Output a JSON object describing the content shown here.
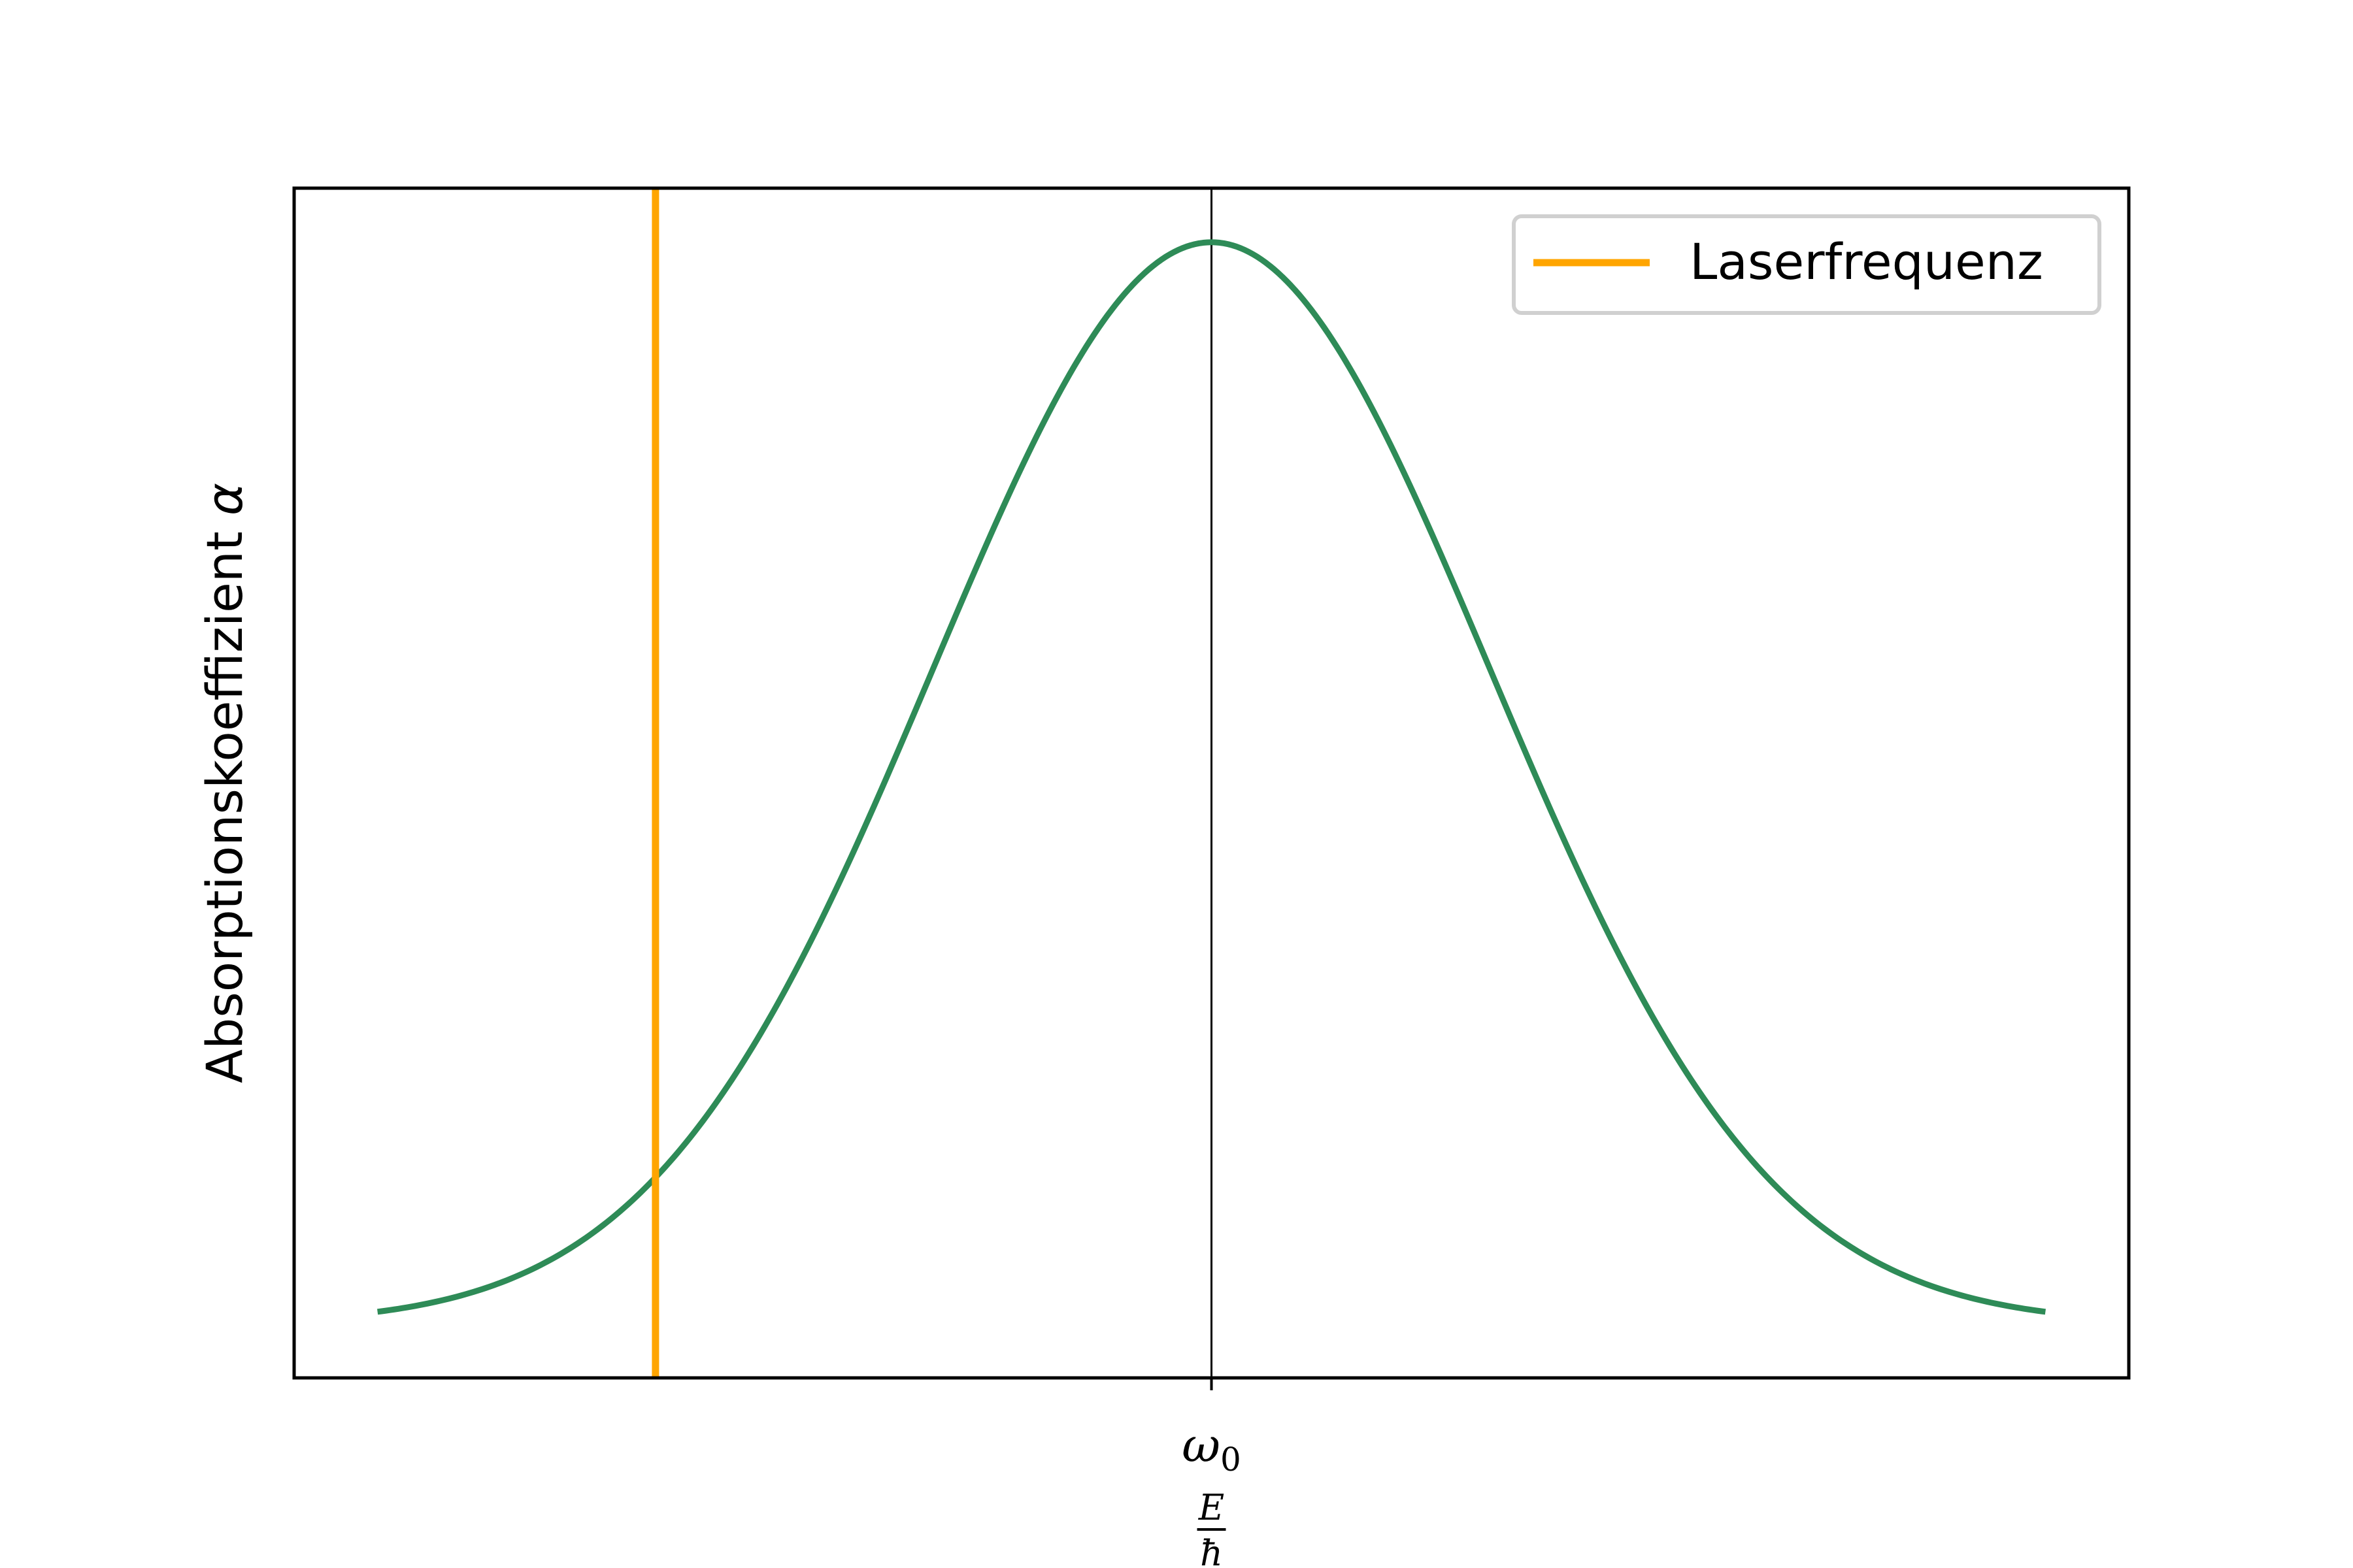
{
  "chart_data": {
    "type": "line",
    "xlabel": "E/ħ",
    "ylabel": "Absorptionskoeffizient α",
    "xtick_labels": [
      "ω0"
    ],
    "x_range": [
      -3.0,
      3.0
    ],
    "xlim": [
      -3.3,
      3.3
    ],
    "ylim": [
      -0.05,
      1.05
    ],
    "series": [
      {
        "kind": "gaussian-curve",
        "center": 0,
        "sigma": 1.0,
        "peak": 1.0,
        "color": "#2e8b57"
      },
      {
        "name": "Laserfrequenz",
        "kind": "vertical-line",
        "x": -2.0,
        "color": "#ffa500"
      }
    ],
    "reference_line": {
      "x": 0,
      "color": "#000000"
    },
    "legend": {
      "position": "top-right",
      "entries": [
        "Laserfrequenz"
      ]
    },
    "grid": false,
    "yticks_visible": false
  }
}
